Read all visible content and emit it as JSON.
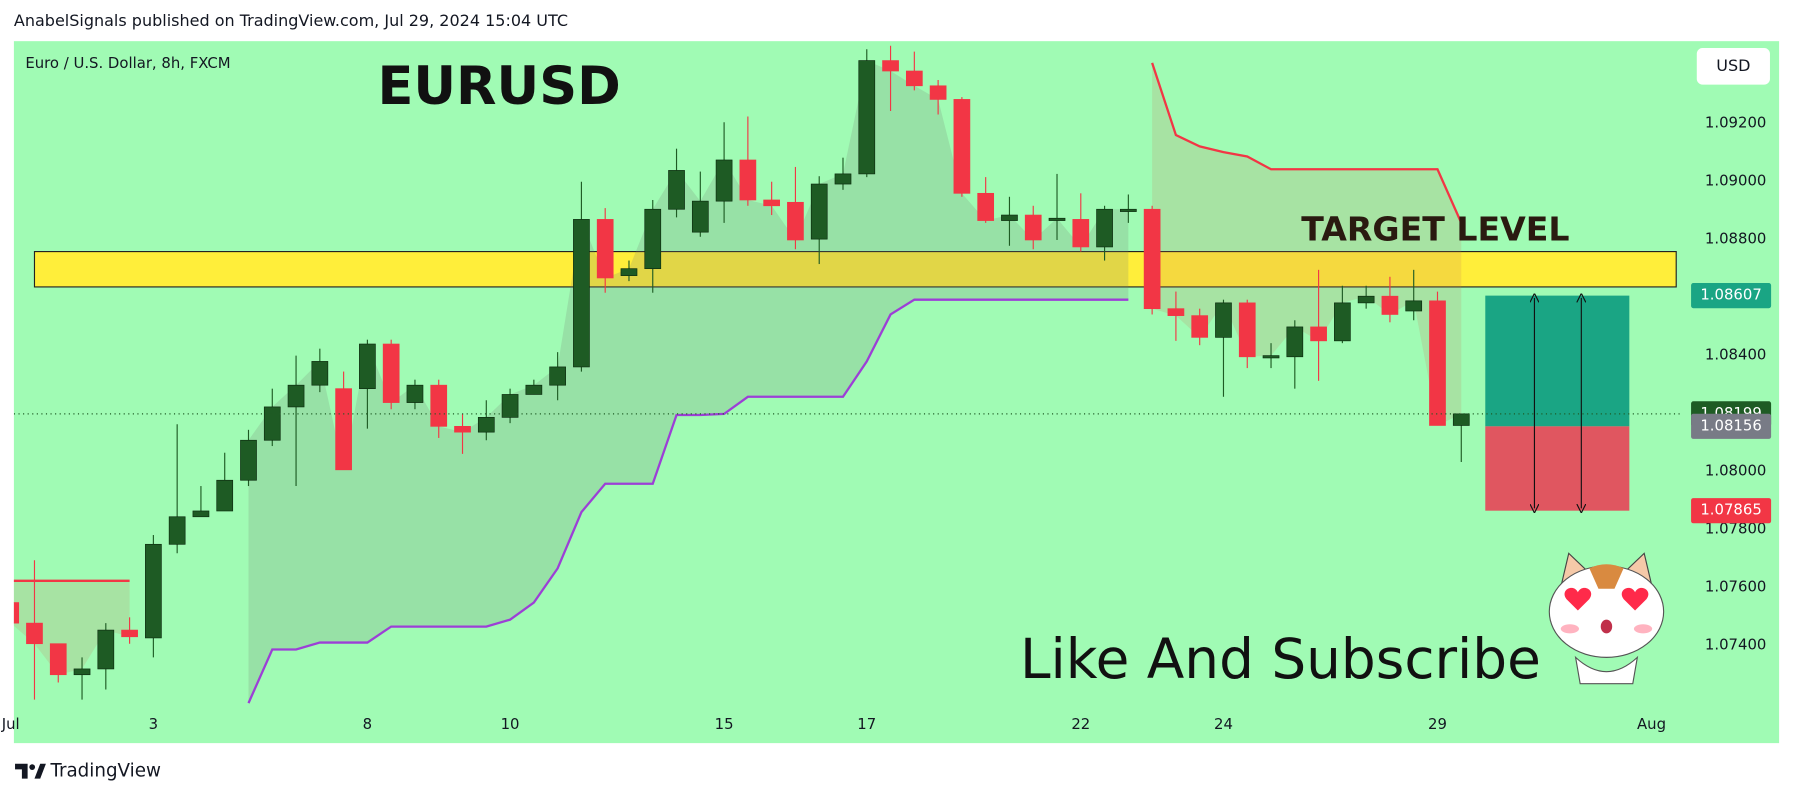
{
  "header": {
    "attribution": "AnabelSignals published on TradingView.com, Jul 29, 2024 15:04 UTC",
    "logo_text": "TradingView"
  },
  "chart_data": {
    "type": "candlestick",
    "symbol_label": "Euro / U.S. Dollar, 8h, FXCM",
    "title": "EURUSD",
    "annotations": [
      "TARGET LEVEL",
      "Like And Subscribe"
    ],
    "currency": "USD",
    "colors": {
      "up": "#1e5b24",
      "down": "#f23645",
      "upper_band": "#f23645",
      "lower_band": "#9c3fd6",
      "zone": "#ffee3a",
      "background": "#a0fbb4"
    },
    "categories": [
      "Jul",
      null,
      null,
      null,
      null,
      null,
      "3",
      null,
      null,
      null,
      null,
      null,
      null,
      null,
      null,
      "8",
      null,
      null,
      null,
      null,
      null,
      "10",
      null,
      null,
      null,
      null,
      null,
      null,
      null,
      null,
      "15",
      null,
      null,
      null,
      null,
      null,
      "17",
      null,
      null,
      null,
      null,
      null,
      null,
      null,
      null,
      "22",
      null,
      null,
      null,
      null,
      null,
      "24",
      null,
      null,
      null,
      null,
      null,
      null,
      null,
      null,
      "29",
      null,
      null,
      null,
      null,
      null,
      null,
      null,
      null,
      "Aug"
    ],
    "open": [
      1.07548,
      1.07477,
      1.07406,
      1.07299,
      1.07319,
      1.07453,
      1.07426,
      1.07749,
      1.07844,
      1.07864,
      1.0797,
      1.08108,
      1.08223,
      1.08298,
      1.08286,
      1.08286,
      1.0844,
      1.08238,
      1.08298,
      1.08156,
      1.08136,
      1.08187,
      1.08266,
      1.08298,
      1.08361,
      1.0887,
      1.08676,
      1.087,
      1.08905,
      1.08826,
      1.08933,
      1.09075,
      1.08937,
      1.08929,
      1.08802,
      1.08992,
      1.09027,
      1.09418,
      1.09382,
      1.09331,
      1.09284,
      1.0896,
      1.08866,
      1.08885,
      1.08866,
      1.0887,
      1.08775,
      1.08897,
      1.08905,
      1.08562,
      1.08538,
      1.08463,
      1.08582,
      1.08392,
      1.08396,
      1.08499,
      1.08451,
      1.08582,
      1.08605,
      1.08554,
      1.08589,
      1.08159,
      null,
      null,
      null,
      null,
      null,
      null,
      null,
      null
    ],
    "high": [
      1.07548,
      1.07694,
      1.07406,
      1.07359,
      1.07477,
      1.07497,
      1.07781,
      1.08163,
      1.0795,
      1.08065,
      1.08144,
      1.08286,
      1.084,
      1.08424,
      1.08345,
      1.08455,
      1.08455,
      1.08317,
      1.08317,
      1.08199,
      1.08246,
      1.08286,
      1.08317,
      1.08412,
      1.09,
      1.08909,
      1.08728,
      1.08937,
      1.09114,
      1.09035,
      1.09205,
      1.09225,
      1.09,
      1.09051,
      1.09019,
      1.09083,
      1.09457,
      1.09469,
      1.09449,
      1.09351,
      1.09292,
      1.09016,
      1.08948,
      1.08917,
      1.09027,
      1.0896,
      1.08917,
      1.08956,
      1.08917,
      1.08621,
      1.08562,
      1.08593,
      1.08593,
      1.08443,
      1.08522,
      1.08696,
      1.08641,
      1.08641,
      1.08672,
      1.08696,
      1.08621,
      1.08199,
      null,
      null,
      null,
      null,
      null,
      null,
      null,
      null
    ],
    "low": [
      1.07477,
      1.07213,
      1.07272,
      1.07213,
      1.07248,
      1.07406,
      1.07359,
      1.07718,
      1.07844,
      1.07864,
      1.0795,
      1.08088,
      1.0795,
      1.08274,
      1.08006,
      1.08148,
      1.08215,
      1.08215,
      1.08116,
      1.08061,
      1.08108,
      1.08167,
      1.08266,
      1.08246,
      1.08345,
      1.08617,
      1.08657,
      1.08617,
      1.08877,
      1.0881,
      1.08858,
      1.08917,
      1.08885,
      1.08767,
      1.08716,
      1.08972,
      1.09016,
      1.09244,
      1.09315,
      1.09232,
      1.08948,
      1.08858,
      1.08779,
      1.08767,
      1.08799,
      1.08759,
      1.08728,
      1.08858,
      1.08542,
      1.08451,
      1.08436,
      1.08258,
      1.08357,
      1.08357,
      1.08286,
      1.08313,
      1.08443,
      1.08562,
      1.08515,
      1.08522,
      1.08159,
      1.08033,
      null,
      null,
      null,
      null,
      null,
      null,
      null,
      null
    ],
    "close": [
      1.07477,
      1.07406,
      1.07299,
      1.07319,
      1.07453,
      1.0743,
      1.07749,
      1.07844,
      1.07864,
      1.0797,
      1.08108,
      1.08223,
      1.08298,
      1.0838,
      1.08006,
      1.0844,
      1.08238,
      1.08298,
      1.08156,
      1.08136,
      1.08187,
      1.08266,
      1.08298,
      1.08361,
      1.0887,
      1.08668,
      1.087,
      1.08905,
      1.09039,
      1.08933,
      1.09075,
      1.08937,
      1.08917,
      1.08799,
      1.08992,
      1.09027,
      1.09418,
      1.09382,
      1.09331,
      1.09284,
      1.0896,
      1.08866,
      1.08885,
      1.08799,
      1.08874,
      1.08775,
      1.08905,
      1.08905,
      1.08562,
      1.08538,
      1.08463,
      1.08582,
      1.08396,
      1.084,
      1.08499,
      1.08451,
      1.08582,
      1.08605,
      1.08542,
      1.08589,
      1.08159,
      1.08199,
      null,
      null,
      null,
      null,
      null,
      null,
      null,
      null
    ],
    "upper_band": [
      1.07623,
      1.07623,
      1.07623,
      1.07623,
      1.07623,
      1.07623,
      null,
      null,
      null,
      null,
      null,
      null,
      null,
      null,
      null,
      null,
      null,
      null,
      null,
      null,
      null,
      null,
      null,
      null,
      null,
      null,
      null,
      null,
      null,
      null,
      null,
      null,
      null,
      null,
      null,
      null,
      null,
      null,
      null,
      null,
      null,
      null,
      null,
      null,
      null,
      null,
      null,
      null,
      1.0941,
      1.09161,
      1.09122,
      1.09102,
      1.09087,
      1.09043,
      1.09043,
      1.09043,
      1.09043,
      1.09043,
      1.09043,
      1.09043,
      1.09043,
      1.08858,
      null,
      null,
      null,
      null,
      null,
      null,
      null,
      null
    ],
    "lower_band": [
      null,
      null,
      null,
      null,
      null,
      null,
      null,
      null,
      null,
      null,
      1.07201,
      1.07386,
      1.07386,
      1.0741,
      1.0741,
      1.0741,
      1.07465,
      1.07465,
      1.07465,
      1.07465,
      1.07465,
      1.07489,
      1.07548,
      1.07666,
      1.0786,
      1.07958,
      1.07958,
      1.07958,
      1.08195,
      1.08195,
      1.08199,
      1.08258,
      1.08258,
      1.08258,
      1.08258,
      1.08258,
      1.0838,
      1.08542,
      1.08593,
      1.08593,
      1.08593,
      1.08593,
      1.08593,
      1.08593,
      1.08593,
      1.08593,
      1.08593,
      1.08593,
      null,
      null,
      null,
      null,
      null,
      null,
      null,
      null,
      null,
      null,
      null,
      null,
      null,
      null,
      null,
      null,
      null,
      null,
      null,
      null,
      null,
      null
    ],
    "zone": [
      1.08637,
      1.08759
    ],
    "position": {
      "entry": 1.08156,
      "target": 1.08607,
      "stop": 1.07865
    },
    "ylim": [
      1.07063,
      1.09485
    ],
    "yticks": [
      {
        "value": 1.074,
        "label": "1.07400"
      },
      {
        "value": 1.076,
        "label": "1.07600"
      },
      {
        "value": 1.078,
        "label": "1.07800"
      },
      {
        "value": 1.08,
        "label": "1.08000"
      },
      {
        "value": 1.084,
        "label": "1.08400"
      },
      {
        "value": 1.088,
        "label": "1.08800"
      },
      {
        "value": 1.09,
        "label": "1.09000"
      },
      {
        "value": 1.092,
        "label": "1.09200"
      }
    ],
    "grid": false
  }
}
